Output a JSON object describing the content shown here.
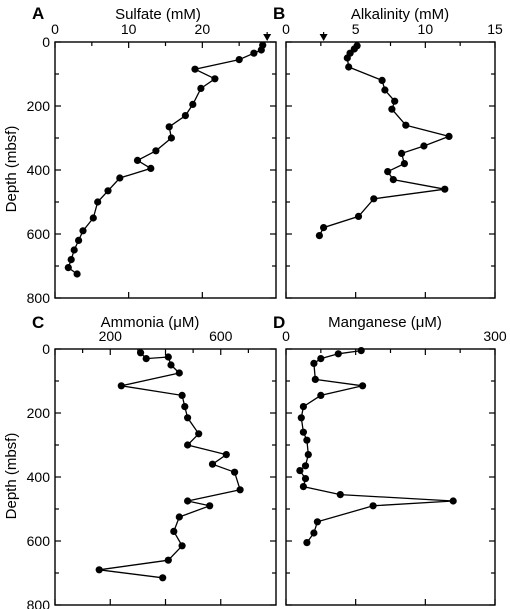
{
  "figure": {
    "ylabel": "Depth (mbsf)"
  },
  "chart_data": [
    {
      "panel": "A",
      "type": "line",
      "title": "Sulfate (mM)",
      "xlabel": "Sulfate (mM)",
      "ylabel": "Depth (mbsf)",
      "xlim": [
        0,
        30
      ],
      "ylim": [
        0,
        800
      ],
      "x_ticks": [
        0,
        10,
        20
      ],
      "y_ticks": [
        0,
        200,
        400,
        600,
        800
      ],
      "y_inverted": true,
      "marker_arrow_x": 28.8,
      "series": [
        {
          "x": [
            28.2,
            28.0,
            27.0,
            25.0,
            19.0,
            21.7,
            19.8,
            18.7,
            17.7,
            15.5,
            15.8,
            13.7,
            11.2,
            13.0,
            8.8,
            7.2,
            5.8,
            5.2,
            3.8,
            3.2,
            2.6,
            2.2,
            1.8,
            3.0
          ],
          "y": [
            10,
            25,
            35,
            55,
            85,
            115,
            145,
            195,
            230,
            265,
            300,
            340,
            370,
            395,
            425,
            465,
            500,
            550,
            590,
            620,
            650,
            680,
            705,
            725
          ]
        }
      ]
    },
    {
      "panel": "B",
      "type": "line",
      "title": "Alkalinity (mM)",
      "xlabel": "Alkalinity (mM)",
      "ylabel": "Depth (mbsf)",
      "xlim": [
        0,
        15
      ],
      "ylim": [
        0,
        800
      ],
      "x_ticks": [
        0,
        5,
        10,
        15
      ],
      "y_ticks": [
        0,
        200,
        400,
        600,
        800
      ],
      "y_inverted": true,
      "marker_arrow_x": 2.7,
      "series": [
        {
          "x": [
            5.1,
            4.9,
            4.6,
            4.4,
            4.5,
            6.9,
            7.1,
            7.8,
            7.6,
            8.6,
            11.7,
            9.9,
            8.3,
            8.5,
            7.3,
            7.7,
            11.4,
            6.3,
            5.2,
            2.7,
            2.4
          ],
          "y": [
            12,
            22,
            35,
            50,
            78,
            120,
            150,
            185,
            210,
            260,
            295,
            325,
            348,
            380,
            405,
            430,
            460,
            490,
            545,
            580,
            605
          ]
        }
      ]
    },
    {
      "panel": "C",
      "type": "line",
      "title": "Ammonia (μM)",
      "xlabel": "Ammonia (μM)",
      "ylabel": "Depth (mbsf)",
      "xlim": [
        0,
        800
      ],
      "ylim": [
        0,
        800
      ],
      "x_ticks": [
        0,
        200,
        400,
        600
      ],
      "x_tick_labels": [
        "",
        "200",
        "",
        "600"
      ],
      "y_ticks": [
        0,
        200,
        400,
        600,
        800
      ],
      "y_inverted": true,
      "series": [
        {
          "x": [
            310,
            330,
            410,
            420,
            450,
            240,
            460,
            470,
            480,
            520,
            480,
            620,
            570,
            650,
            670,
            480,
            560,
            450,
            430,
            460,
            410,
            160,
            390
          ],
          "y": [
            12,
            30,
            25,
            50,
            75,
            115,
            145,
            180,
            215,
            265,
            300,
            330,
            360,
            385,
            440,
            475,
            490,
            525,
            570,
            615,
            660,
            690,
            715
          ]
        }
      ]
    },
    {
      "panel": "D",
      "type": "line",
      "title": "Manganese (μM)",
      "xlabel": "Manganese (μM)",
      "ylabel": "Depth (mbsf)",
      "xlim": [
        0,
        300
      ],
      "ylim": [
        0,
        800
      ],
      "x_ticks": [
        0,
        100,
        200,
        300
      ],
      "x_tick_labels": [
        "0",
        "",
        "",
        "300"
      ],
      "y_ticks": [
        0,
        200,
        400,
        600,
        800
      ],
      "y_inverted": true,
      "series": [
        {
          "x": [
            108,
            75,
            50,
            40,
            42,
            110,
            50,
            25,
            22,
            25,
            30,
            32,
            28,
            20,
            28,
            25,
            78,
            240,
            125,
            45,
            40,
            30
          ],
          "y": [
            5,
            15,
            30,
            45,
            95,
            115,
            145,
            180,
            215,
            260,
            285,
            330,
            365,
            380,
            405,
            430,
            455,
            475,
            490,
            540,
            575,
            605
          ]
        }
      ]
    }
  ]
}
